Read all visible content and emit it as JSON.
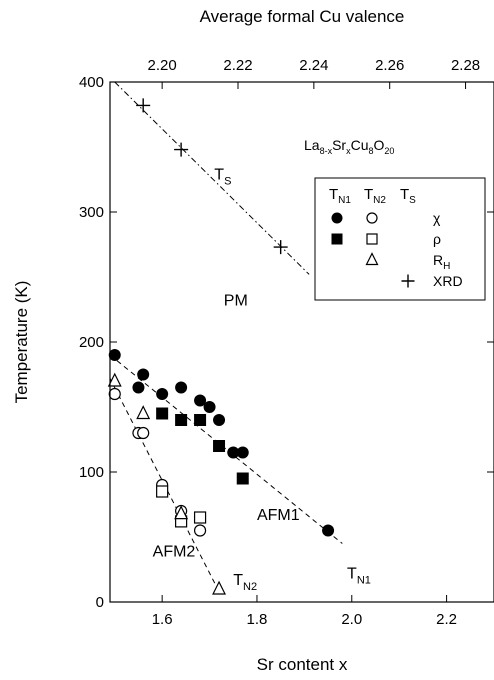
{
  "chart_data": {
    "type": "scatter",
    "xlabel": "Sr content x",
    "ylabel": "Temperature (K)",
    "top_axis_label": "Average formal Cu valence",
    "xlim": [
      1.49,
      2.3
    ],
    "ylim": [
      0,
      400
    ],
    "x_ticks": [
      1.6,
      1.8,
      2.0,
      2.2
    ],
    "x_tick_labels": [
      "1.6",
      "1.8",
      "2.0",
      "2.2"
    ],
    "y_ticks": [
      0,
      100,
      200,
      300,
      400
    ],
    "y_tick_labels": [
      "0",
      "100",
      "200",
      "300",
      "400"
    ],
    "top_ticks": [
      2.2,
      2.22,
      2.24,
      2.26,
      2.28
    ],
    "top_tick_labels": [
      "2.20",
      "2.22",
      "2.24",
      "2.26",
      "2.28"
    ],
    "grid": false,
    "compound": {
      "base": "La",
      "s1": "8-x",
      "a": "Sr",
      "s2": "x",
      "b": "Cu",
      "s3": "8",
      "c": "O",
      "s4": "20"
    },
    "legend": {
      "position": "top-right",
      "headers": [
        {
          "main": "T",
          "sub": "N1"
        },
        {
          "main": "T",
          "sub": "N2"
        },
        {
          "main": "T",
          "sub": "S"
        }
      ],
      "rows": [
        {
          "marker": "filled-circle",
          "marker2": "open-circle",
          "label": "χ"
        },
        {
          "marker": "filled-square",
          "marker2": "open-square",
          "label": "ρ"
        },
        {
          "marker2": "open-triangle",
          "label": "R",
          "label_sub": "H"
        },
        {
          "marker3": "plus",
          "label": "XRD"
        }
      ]
    },
    "series": [
      {
        "marker": "filled-circle",
        "points": [
          [
            1.5,
            190
          ],
          [
            1.55,
            165
          ],
          [
            1.56,
            175
          ],
          [
            1.6,
            160
          ],
          [
            1.64,
            165
          ],
          [
            1.68,
            155
          ],
          [
            1.7,
            150
          ],
          [
            1.72,
            140
          ],
          [
            1.75,
            115
          ],
          [
            1.77,
            115
          ],
          [
            1.95,
            55
          ]
        ]
      },
      {
        "marker": "filled-square",
        "points": [
          [
            1.6,
            145
          ],
          [
            1.64,
            140
          ],
          [
            1.68,
            140
          ],
          [
            1.72,
            120
          ],
          [
            1.77,
            95
          ]
        ]
      },
      {
        "marker": "open-circle",
        "points": [
          [
            1.5,
            160
          ],
          [
            1.55,
            130
          ],
          [
            1.56,
            130
          ],
          [
            1.6,
            90
          ],
          [
            1.64,
            70
          ],
          [
            1.68,
            55
          ]
        ]
      },
      {
        "marker": "open-square",
        "points": [
          [
            1.6,
            85
          ],
          [
            1.64,
            62
          ],
          [
            1.68,
            65
          ]
        ]
      },
      {
        "marker": "open-triangle",
        "points": [
          [
            1.5,
            170
          ],
          [
            1.56,
            145
          ],
          [
            1.64,
            68
          ],
          [
            1.72,
            10
          ]
        ]
      },
      {
        "marker": "plus",
        "points": [
          [
            1.56,
            382
          ],
          [
            1.64,
            348
          ],
          [
            1.85,
            273
          ]
        ]
      }
    ],
    "lines": [
      {
        "name": "T_N1",
        "style": "dashed",
        "from": [
          1.49,
          190
        ],
        "to": [
          1.98,
          45
        ]
      },
      {
        "name": "T_N2",
        "style": "dashed",
        "from": [
          1.49,
          172
        ],
        "to": [
          1.72,
          8
        ]
      },
      {
        "name": "T_S",
        "style": "dash-dot",
        "from": [
          1.5,
          400
        ],
        "to": [
          1.91,
          252
        ]
      }
    ],
    "annotations": [
      {
        "text": "T",
        "sub": "S",
        "x": 1.71,
        "y": 325
      },
      {
        "text": "PM",
        "x": 1.73,
        "y": 228
      },
      {
        "text": "AFM1",
        "x": 1.8,
        "y": 63
      },
      {
        "text": "AFM2",
        "x": 1.58,
        "y": 35
      },
      {
        "text": "T",
        "sub": "N2",
        "x": 1.75,
        "y": 13
      },
      {
        "text": "T",
        "sub": "N1",
        "x": 1.99,
        "y": 18
      }
    ]
  }
}
